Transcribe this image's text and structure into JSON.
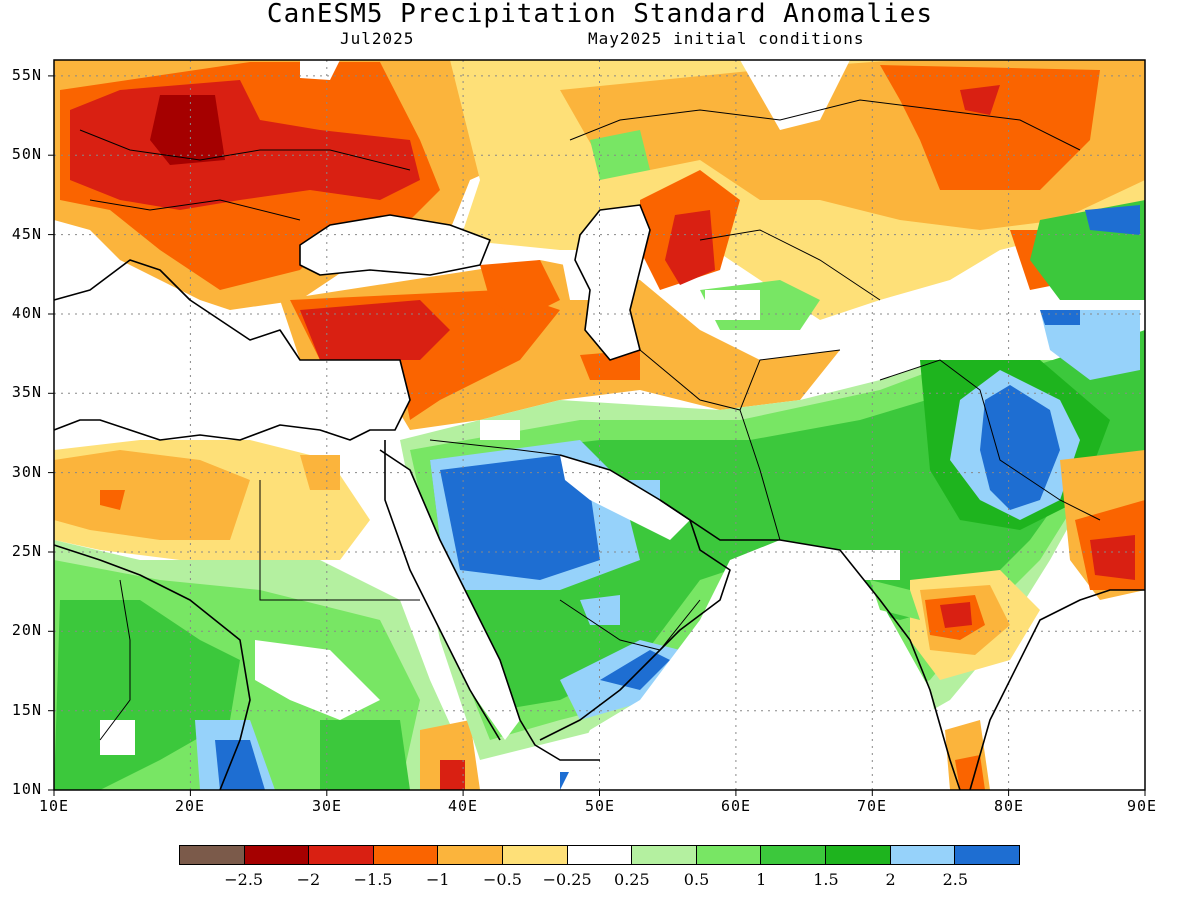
{
  "title": "CanESM5 Precipitation Standard Anomalies",
  "subtitle_left": "Jul2025",
  "subtitle_right": "May2025 initial conditions",
  "map": {
    "lon_range": [
      10,
      90
    ],
    "lat_range": [
      10,
      56
    ],
    "x_ticks": [
      "10E",
      "20E",
      "30E",
      "40E",
      "50E",
      "60E",
      "70E",
      "80E",
      "90E"
    ],
    "y_ticks": [
      "55N",
      "50N",
      "45N",
      "40N",
      "35N",
      "30N",
      "25N",
      "20N",
      "15N",
      "10N"
    ],
    "grid": "dotted"
  },
  "colorbar": {
    "colors": [
      "#7b5a4a",
      "#a50000",
      "#d92012",
      "#fa6400",
      "#fbb43c",
      "#fee078",
      "#ffffff",
      "#b4f0a0",
      "#78e664",
      "#3cc83c",
      "#1eb41e",
      "#96d2fa",
      "#1e6ed2"
    ],
    "labels": [
      "−2.5",
      "−2",
      "−1.5",
      "−1",
      "−0.5",
      "−0.25",
      "0.25",
      "0.5",
      "1",
      "1.5",
      "2",
      "2.5"
    ]
  }
}
